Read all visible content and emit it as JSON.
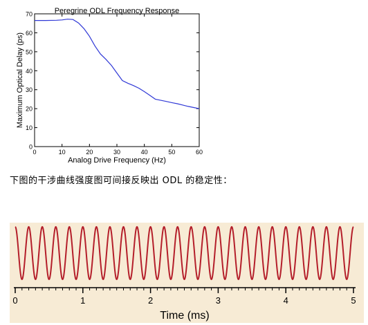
{
  "chart_data": [
    {
      "type": "line",
      "title": "Peregrine ODL Frequency Response",
      "xlabel": "Analog Drive Frequency (Hz)",
      "ylabel": "Maximum Optical Delay (ps)",
      "xlim": [
        0,
        60
      ],
      "ylim": [
        0,
        70
      ],
      "xticks": [
        "0",
        "10",
        "20",
        "30",
        "40",
        "50",
        "60"
      ],
      "yticks": [
        "0",
        "10",
        "20",
        "30",
        "40",
        "50",
        "60",
        "70"
      ],
      "grid": false,
      "series": [
        {
          "color": "#2f38d6",
          "x": [
            0,
            4,
            8,
            10,
            12,
            14,
            16,
            18,
            20,
            22,
            24,
            26,
            28,
            30,
            32,
            34,
            36,
            38,
            40,
            42,
            44,
            46,
            48,
            50,
            52,
            54,
            56,
            58,
            60
          ],
          "y": [
            66.5,
            66.5,
            66.6,
            66.8,
            67.2,
            67.0,
            65.2,
            62.2,
            58.2,
            53.0,
            48.8,
            46.0,
            42.8,
            38.8,
            34.8,
            33.4,
            32.2,
            30.8,
            29.0,
            27.0,
            25.0,
            24.4,
            23.8,
            23.2,
            22.6,
            21.9,
            21.2,
            20.6,
            20.0
          ]
        }
      ]
    },
    {
      "type": "line",
      "xlabel": "Time (ms)",
      "ylabel": "",
      "xlim": [
        0,
        5
      ],
      "xticks": [
        "0",
        "1",
        "2",
        "3",
        "4",
        "5"
      ],
      "grid": false,
      "series": [
        {
          "color": "#b41e2a",
          "frequency_khz": 5,
          "amplitude": 1
        }
      ]
    }
  ],
  "caption": "下图的干涉曲线强度图可间接反映出 ODL 的稳定性："
}
